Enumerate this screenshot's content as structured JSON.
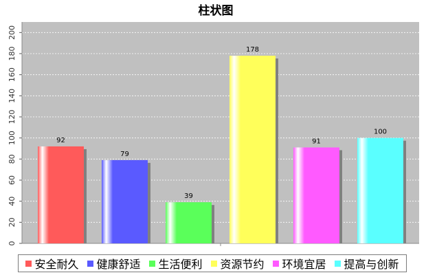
{
  "chart_data": {
    "type": "bar",
    "title": "柱状图",
    "xlabel": "",
    "ylabel": "",
    "ylim": [
      0,
      210
    ],
    "yticks": [
      0,
      20,
      40,
      60,
      80,
      100,
      120,
      140,
      160,
      180,
      200
    ],
    "grid": true,
    "legend_position": "bottom",
    "series": [
      {
        "name": "安全耐久",
        "value": 92,
        "color": "#ff5a5a"
      },
      {
        "name": "健康舒适",
        "value": 79,
        "color": "#5a5aff"
      },
      {
        "name": "生活便利",
        "value": 39,
        "color": "#5aff5a"
      },
      {
        "name": "资源节约",
        "value": 178,
        "color": "#ffff5a"
      },
      {
        "name": "环境宜居",
        "value": 91,
        "color": "#ff5aff"
      },
      {
        "name": "提高与创新",
        "value": 100,
        "color": "#5affff"
      }
    ]
  },
  "colors": {
    "plot_background": "#c0c0c0",
    "gridline": "#ffffff",
    "shadow": "#808080"
  }
}
